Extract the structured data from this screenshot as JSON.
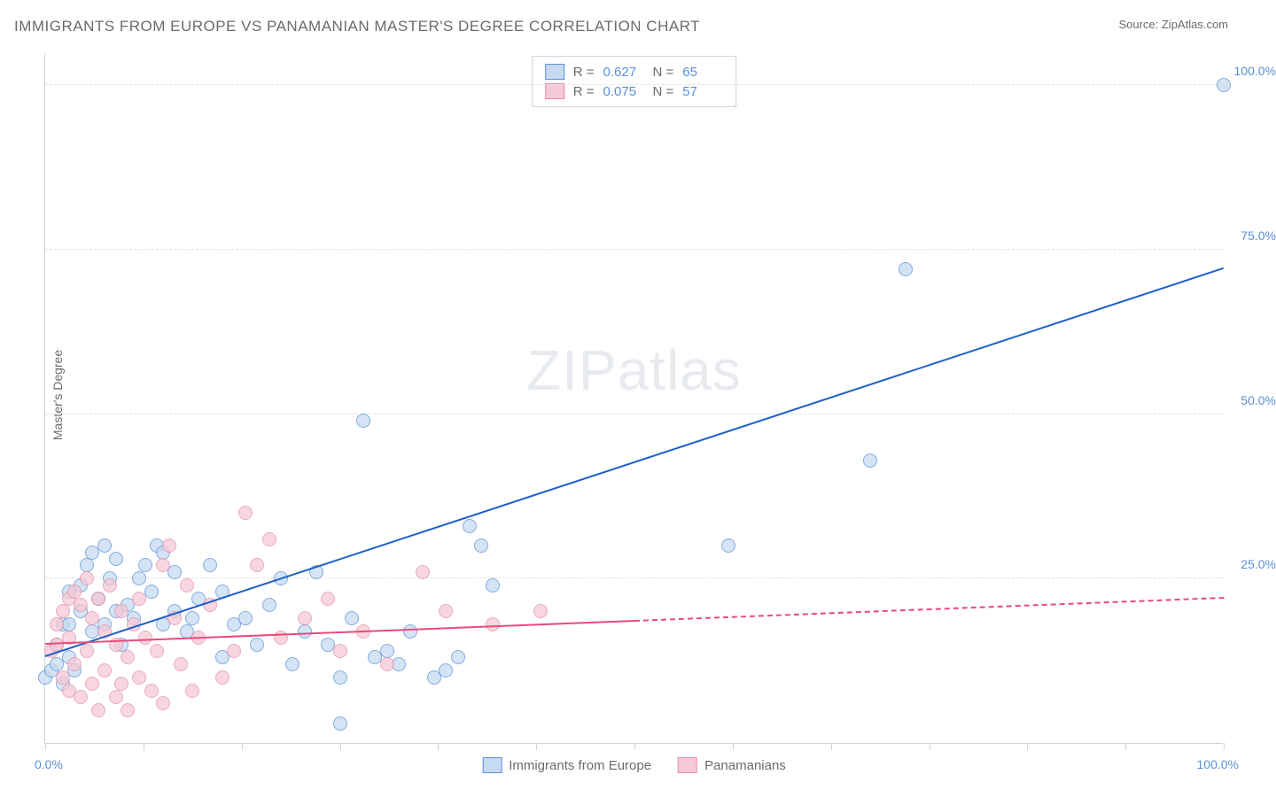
{
  "title": "IMMIGRANTS FROM EUROPE VS PANAMANIAN MASTER'S DEGREE CORRELATION CHART",
  "source": "Source: ZipAtlas.com",
  "y_axis_title": "Master's Degree",
  "watermark_bold": "ZIP",
  "watermark_light": "atlas",
  "xlim": [
    0,
    100
  ],
  "ylim": [
    0,
    105
  ],
  "x_tick_start": "0.0%",
  "x_tick_end": "100.0%",
  "x_minor_ticks_pct": [
    0,
    8.33,
    16.67,
    25,
    33.33,
    41.67,
    50,
    58.33,
    66.67,
    75,
    83.33,
    91.67,
    100
  ],
  "y_ticks": [
    {
      "v": 25,
      "label": "25.0%"
    },
    {
      "v": 50,
      "label": "50.0%"
    },
    {
      "v": 75,
      "label": "75.0%"
    },
    {
      "v": 100,
      "label": "100.0%"
    }
  ],
  "colors": {
    "blue_stroke": "#5b8fd6",
    "blue_fill": "#c6dbf2",
    "pink_stroke": "#e68fa6",
    "pink_fill": "#f5c9d5",
    "blue_line": "#1e60c9",
    "pink_line": "#e94b7a",
    "grid": "#e0e3e8",
    "axis": "#cdd4db",
    "text_muted": "#6b6b6b"
  },
  "point_radius": 8,
  "series": [
    {
      "name": "Immigrants from Europe",
      "color_key": "blue",
      "R": "0.627",
      "N": "65",
      "trend": {
        "x1": 0,
        "y1": 13,
        "x2": 100,
        "y2": 72,
        "solid_until_x": 100
      },
      "points": [
        [
          0,
          10
        ],
        [
          0.5,
          11
        ],
        [
          1,
          12
        ],
        [
          1,
          15
        ],
        [
          1.5,
          18
        ],
        [
          1.5,
          9
        ],
        [
          2,
          18
        ],
        [
          2,
          23
        ],
        [
          2,
          13
        ],
        [
          2.5,
          11
        ],
        [
          3,
          20
        ],
        [
          3,
          24
        ],
        [
          3.5,
          27
        ],
        [
          4,
          29
        ],
        [
          4,
          17
        ],
        [
          4.5,
          22
        ],
        [
          5,
          30
        ],
        [
          5,
          18
        ],
        [
          5.5,
          25
        ],
        [
          6,
          28
        ],
        [
          6,
          20
        ],
        [
          6.5,
          15
        ],
        [
          7,
          21
        ],
        [
          7.5,
          19
        ],
        [
          8,
          25
        ],
        [
          8.5,
          27
        ],
        [
          9,
          23
        ],
        [
          9.5,
          30
        ],
        [
          10,
          29
        ],
        [
          10,
          18
        ],
        [
          11,
          20
        ],
        [
          11,
          26
        ],
        [
          12,
          17
        ],
        [
          12.5,
          19
        ],
        [
          13,
          22
        ],
        [
          14,
          27
        ],
        [
          15,
          23
        ],
        [
          15,
          13
        ],
        [
          16,
          18
        ],
        [
          17,
          19
        ],
        [
          18,
          15
        ],
        [
          19,
          21
        ],
        [
          20,
          25
        ],
        [
          21,
          12
        ],
        [
          22,
          17
        ],
        [
          23,
          26
        ],
        [
          24,
          15
        ],
        [
          25,
          10
        ],
        [
          25,
          3
        ],
        [
          26,
          19
        ],
        [
          27,
          49
        ],
        [
          28,
          13
        ],
        [
          29,
          14
        ],
        [
          30,
          12
        ],
        [
          31,
          17
        ],
        [
          33,
          10
        ],
        [
          34,
          11
        ],
        [
          35,
          13
        ],
        [
          36,
          33
        ],
        [
          37,
          30
        ],
        [
          38,
          24
        ],
        [
          58,
          30
        ],
        [
          70,
          43
        ],
        [
          73,
          72
        ],
        [
          100,
          100
        ]
      ]
    },
    {
      "name": "Panamanians",
      "color_key": "pink",
      "R": "0.075",
      "N": "57",
      "trend": {
        "x1": 0,
        "y1": 15,
        "x2": 100,
        "y2": 22,
        "solid_until_x": 50
      },
      "points": [
        [
          0.5,
          14
        ],
        [
          1,
          15
        ],
        [
          1,
          18
        ],
        [
          1.5,
          10
        ],
        [
          1.5,
          20
        ],
        [
          2,
          22
        ],
        [
          2,
          16
        ],
        [
          2,
          8
        ],
        [
          2.5,
          23
        ],
        [
          2.5,
          12
        ],
        [
          3,
          21
        ],
        [
          3,
          7
        ],
        [
          3.5,
          25
        ],
        [
          3.5,
          14
        ],
        [
          4,
          19
        ],
        [
          4,
          9
        ],
        [
          4.5,
          22
        ],
        [
          4.5,
          5
        ],
        [
          5,
          17
        ],
        [
          5,
          11
        ],
        [
          5.5,
          24
        ],
        [
          6,
          15
        ],
        [
          6,
          7
        ],
        [
          6.5,
          20
        ],
        [
          6.5,
          9
        ],
        [
          7,
          13
        ],
        [
          7,
          5
        ],
        [
          7.5,
          18
        ],
        [
          8,
          22
        ],
        [
          8,
          10
        ],
        [
          8.5,
          16
        ],
        [
          9,
          8
        ],
        [
          9.5,
          14
        ],
        [
          10,
          27
        ],
        [
          10,
          6
        ],
        [
          10.5,
          30
        ],
        [
          11,
          19
        ],
        [
          11.5,
          12
        ],
        [
          12,
          24
        ],
        [
          12.5,
          8
        ],
        [
          13,
          16
        ],
        [
          14,
          21
        ],
        [
          15,
          10
        ],
        [
          16,
          14
        ],
        [
          17,
          35
        ],
        [
          18,
          27
        ],
        [
          19,
          31
        ],
        [
          20,
          16
        ],
        [
          22,
          19
        ],
        [
          24,
          22
        ],
        [
          25,
          14
        ],
        [
          27,
          17
        ],
        [
          29,
          12
        ],
        [
          32,
          26
        ],
        [
          34,
          20
        ],
        [
          38,
          18
        ],
        [
          42,
          20
        ]
      ]
    }
  ],
  "stats_legend": {
    "R_label": "R =",
    "N_label": "N ="
  },
  "bottom_legend": [
    {
      "color_key": "blue",
      "label": "Immigrants from Europe"
    },
    {
      "color_key": "pink",
      "label": "Panamanians"
    }
  ]
}
